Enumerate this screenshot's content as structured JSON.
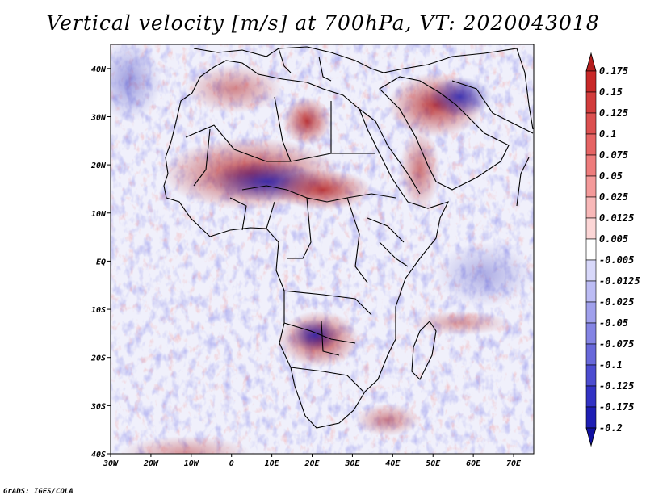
{
  "title": "Vertical velocity [m/s] at 700hPa, VT: 2020043018",
  "credit": "GrADS: IGES/COLA",
  "map": {
    "lon_ticks": [
      "30W",
      "20W",
      "10W",
      "0",
      "10E",
      "20E",
      "30E",
      "40E",
      "50E",
      "60E",
      "70E"
    ],
    "lat_ticks": [
      "40N",
      "30N",
      "20N",
      "10N",
      "EQ",
      "10S",
      "20S",
      "30S",
      "40S"
    ],
    "lon_range": [
      -30,
      75
    ],
    "lat_range": [
      -40,
      45
    ],
    "variable": "vertical velocity",
    "level": "700hPa",
    "units": "m/s"
  },
  "colorbar": {
    "levels": [
      "0.175",
      "0.15",
      "0.125",
      "0.1",
      "0.075",
      "0.05",
      "0.025",
      "0.0125",
      "0.005",
      "-0.005",
      "-0.0125",
      "-0.025",
      "-0.05",
      "-0.075",
      "-0.1",
      "-0.125",
      "-0.175",
      "-0.2"
    ],
    "colors": [
      "#b41e1e",
      "#c82828",
      "#d23c3c",
      "#dc5050",
      "#e66464",
      "#ee7c7c",
      "#f49a9a",
      "#f8b8b8",
      "#fcd6d6",
      "#ffffff",
      "#d8d8fa",
      "#bcbcf4",
      "#a0a0ec",
      "#8484e4",
      "#6868da",
      "#4c4cd0",
      "#3232c4",
      "#1e1eb4",
      "#1010a0"
    ]
  },
  "colors": {
    "positive": "#c8282a",
    "negative": "#2a2ac8",
    "background": "#f2f2fc",
    "coast": "#000000"
  }
}
